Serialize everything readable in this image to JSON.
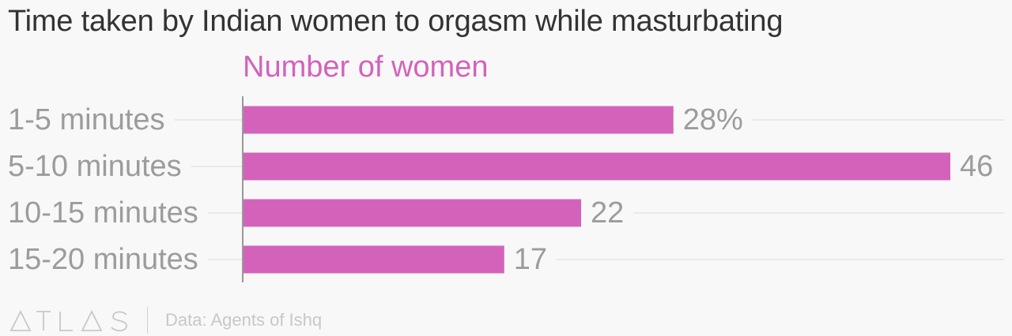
{
  "colors": {
    "bar": "#d363ba",
    "label": "#9c9c9c",
    "title": "#333333",
    "axis": "#999999",
    "grid": "#e4e4e4",
    "footer": "#c8c8c8"
  },
  "footer": {
    "logo_text": "ATLAS",
    "source": "Data: Agents of Ishq"
  },
  "chart_data": {
    "type": "bar",
    "orientation": "horizontal",
    "title": "Time taken by Indian women to orgasm while masturbating",
    "categories": [
      "1-5 minutes",
      "5-10 minutes",
      "10-15 minutes",
      "15-20 minutes"
    ],
    "series": [
      {
        "name": "Number of women",
        "values": [
          28,
          46,
          22,
          17
        ]
      }
    ],
    "value_labels": [
      "28%",
      "46",
      "22",
      "17"
    ],
    "xlim": [
      0,
      46
    ],
    "grid": true,
    "legend": "top-left"
  }
}
